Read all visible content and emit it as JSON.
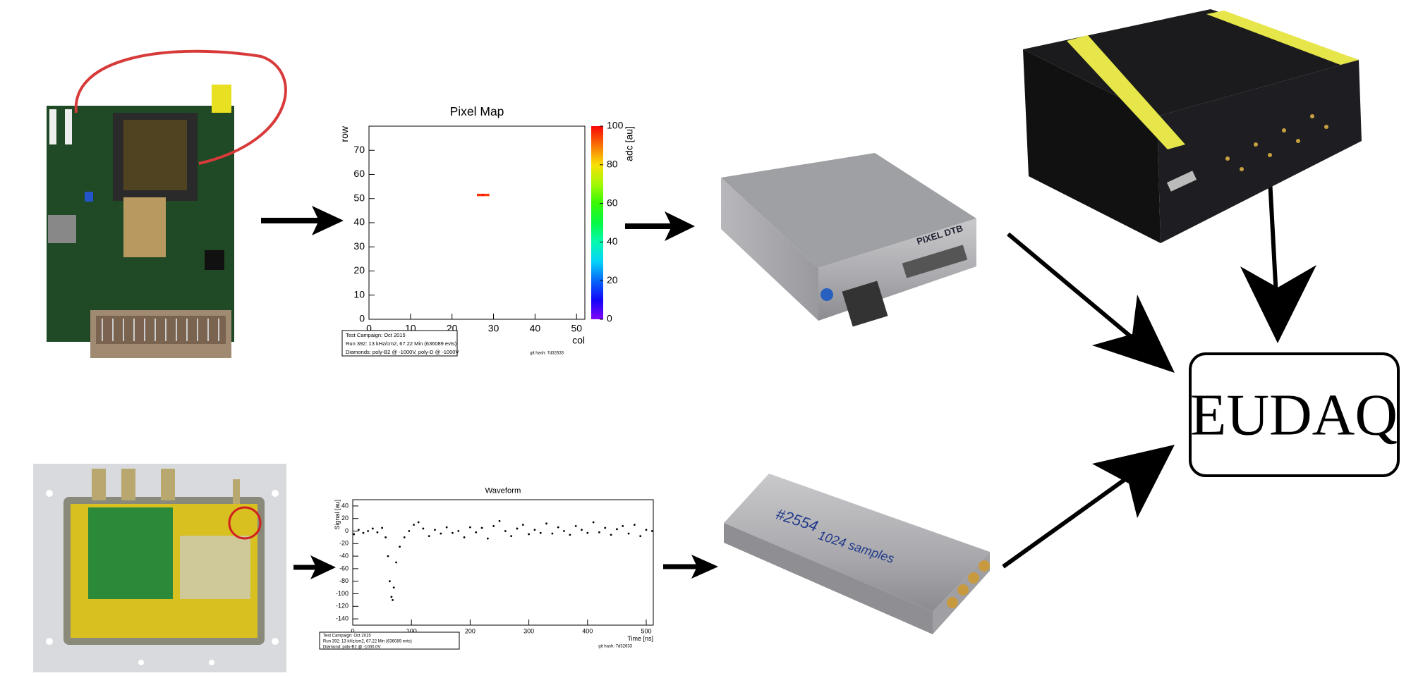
{
  "pixel_map": {
    "title": "Pixel Map",
    "x_label": "col",
    "y_label": "row",
    "z_label": "adc [au]",
    "xlim": [
      0,
      52
    ],
    "ylim": [
      0,
      80
    ],
    "zlim": [
      0,
      100
    ],
    "xticks": [
      0,
      10,
      20,
      30,
      40,
      50
    ],
    "yticks": [
      0,
      10,
      20,
      30,
      40,
      50,
      60,
      70
    ],
    "zticks": [
      0,
      20,
      40,
      60,
      80,
      100
    ],
    "hits": [
      {
        "col": 26,
        "row": 51,
        "adc": 96
      },
      {
        "col": 27,
        "row": 51,
        "adc": 98
      },
      {
        "col": 28,
        "row": 51,
        "adc": 95
      }
    ],
    "stats": [
      "Test Campaign: Oct 2015",
      "Run 392:  13 kHz/cm2, 67.22 Min (636089 evts)",
      "Diamonds: poly-B2 @ -1000V, poly-D @ -1000V"
    ],
    "footer": "git hash: 7d32633"
  },
  "waveform": {
    "title": "Waveform",
    "x_label": "Time [ns]",
    "y_label": "Signal [au]",
    "xlim": [
      0,
      512
    ],
    "ylim": [
      -150,
      50
    ],
    "xticks": [
      0,
      100,
      200,
      300,
      400,
      500
    ],
    "yticks": [
      -140,
      -120,
      -100,
      -80,
      -60,
      -40,
      -20,
      0,
      20,
      40
    ],
    "x": [
      2,
      10,
      18,
      26,
      34,
      42,
      50,
      56,
      60,
      63,
      66,
      68,
      70,
      74,
      80,
      88,
      96,
      104,
      112,
      120,
      130,
      140,
      150,
      160,
      170,
      180,
      190,
      200,
      210,
      220,
      230,
      240,
      250,
      260,
      270,
      280,
      290,
      300,
      310,
      320,
      330,
      340,
      350,
      360,
      370,
      380,
      390,
      400,
      410,
      420,
      430,
      440,
      450,
      460,
      470,
      480,
      490,
      500,
      510
    ],
    "y": [
      -5,
      2,
      -3,
      0,
      4,
      -2,
      5,
      -10,
      -40,
      -80,
      -105,
      -110,
      -90,
      -50,
      -25,
      -10,
      0,
      10,
      14,
      4,
      -8,
      2,
      -4,
      6,
      -3,
      0,
      -10,
      6,
      -2,
      5,
      -12,
      8,
      16,
      0,
      -8,
      4,
      10,
      -5,
      2,
      -3,
      12,
      -4,
      6,
      0,
      -6,
      8,
      2,
      -3,
      14,
      -2,
      5,
      -6,
      3,
      8,
      -4,
      10,
      -8,
      2,
      0
    ],
    "stats": [
      "Test Campaign: Oct 2015",
      "Run 392:  13 kHz/cm2, 67.22 Min (636089 evts)",
      "Diamond: poly-B2 @ -1000.0V"
    ],
    "footer": "git hash: 7d32633"
  },
  "devices": {
    "dtb_label": "PIXEL DTB",
    "drs_id": "#2554",
    "drs_note": "1024 samples"
  },
  "eudaq": "EUDAQ"
}
